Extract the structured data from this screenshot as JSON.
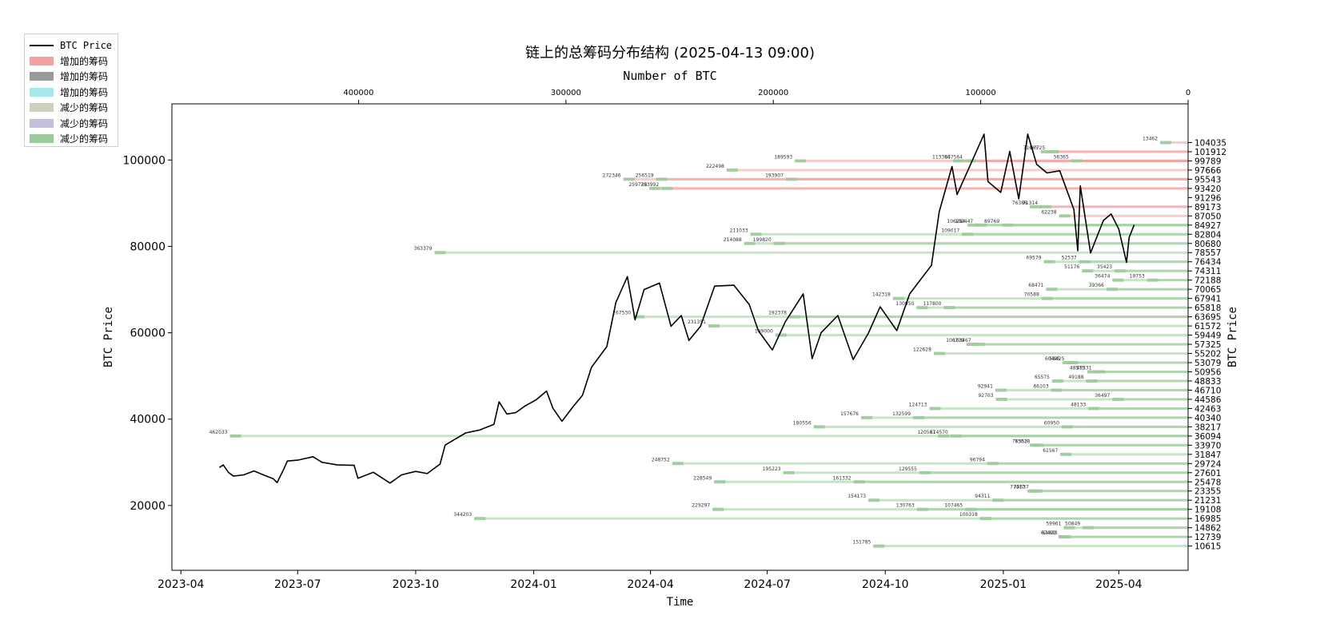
{
  "chart_data": {
    "type": "line",
    "title": "链上的总筹码分布结构 (2025-04-13 09:00)",
    "xlabel": "Time",
    "ylabel": "BTC Price",
    "ylabel_right": "BTC Price",
    "xlabel_top": "Number of BTC",
    "x_ticks": [
      "2023-04",
      "2023-07",
      "2023-10",
      "2024-01",
      "2024-04",
      "2024-07",
      "2024-10",
      "2025-01",
      "2025-04"
    ],
    "y_ticks": [
      20000,
      40000,
      60000,
      80000,
      100000
    ],
    "top_ticks": [
      400000,
      300000,
      200000,
      100000,
      0
    ],
    "xlim": [
      "2023-03-25",
      "2025-05-25"
    ],
    "ylim": [
      5000,
      113000
    ],
    "top_xlim": [
      490000,
      0
    ],
    "legend": [
      {
        "label": "BTC Price",
        "kind": "line",
        "color": "#000000"
      },
      {
        "label": "增加的筹码",
        "kind": "patch",
        "color": "#f4a1a1"
      },
      {
        "label": "增加的筹码",
        "kind": "patch",
        "color": "#999999"
      },
      {
        "label": "增加的筹码",
        "kind": "patch",
        "color": "#a6e7ec"
      },
      {
        "label": "减少的筹码",
        "kind": "patch",
        "color": "#cdd0bd"
      },
      {
        "label": "减少的筹码",
        "kind": "patch",
        "color": "#c3bedc"
      },
      {
        "label": "减少的筹码",
        "kind": "patch",
        "color": "#9ccb9b"
      }
    ],
    "series": [
      {
        "kind": "price",
        "points": [
          [
            "2023-05-01",
            28800
          ],
          [
            "2023-05-04",
            29400
          ],
          [
            "2023-05-08",
            27700
          ],
          [
            "2023-05-12",
            26800
          ],
          [
            "2023-05-20",
            27100
          ],
          [
            "2023-05-28",
            28000
          ],
          [
            "2023-06-05",
            27000
          ],
          [
            "2023-06-12",
            26200
          ],
          [
            "2023-06-15",
            25300
          ],
          [
            "2023-06-20",
            28300
          ],
          [
            "2023-06-23",
            30300
          ],
          [
            "2023-07-01",
            30500
          ],
          [
            "2023-07-13",
            31300
          ],
          [
            "2023-07-20",
            30000
          ],
          [
            "2023-08-01",
            29400
          ],
          [
            "2023-08-14",
            29300
          ],
          [
            "2023-08-17",
            26300
          ],
          [
            "2023-08-29",
            27700
          ],
          [
            "2023-09-11",
            25200
          ],
          [
            "2023-09-20",
            27100
          ],
          [
            "2023-10-01",
            27900
          ],
          [
            "2023-10-10",
            27400
          ],
          [
            "2023-10-20",
            29600
          ],
          [
            "2023-10-24",
            34000
          ],
          [
            "2023-11-01",
            35400
          ],
          [
            "2023-11-09",
            36800
          ],
          [
            "2023-11-20",
            37500
          ],
          [
            "2023-12-01",
            38800
          ],
          [
            "2023-12-05",
            44000
          ],
          [
            "2023-12-11",
            41200
          ],
          [
            "2023-12-18",
            41500
          ],
          [
            "2023-12-25",
            43000
          ],
          [
            "2024-01-03",
            44500
          ],
          [
            "2024-01-11",
            46500
          ],
          [
            "2024-01-16",
            42500
          ],
          [
            "2024-01-23",
            39500
          ],
          [
            "2024-02-01",
            43000
          ],
          [
            "2024-02-08",
            45500
          ],
          [
            "2024-02-15",
            52000
          ],
          [
            "2024-02-27",
            56800
          ],
          [
            "2024-03-05",
            67000
          ],
          [
            "2024-03-14",
            73000
          ],
          [
            "2024-03-20",
            63000
          ],
          [
            "2024-03-27",
            70000
          ],
          [
            "2024-04-08",
            71500
          ],
          [
            "2024-04-17",
            61500
          ],
          [
            "2024-04-25",
            64000
          ],
          [
            "2024-05-01",
            58200
          ],
          [
            "2024-05-10",
            61500
          ],
          [
            "2024-05-21",
            70800
          ],
          [
            "2024-06-05",
            71000
          ],
          [
            "2024-06-17",
            66500
          ],
          [
            "2024-06-24",
            60500
          ],
          [
            "2024-07-05",
            56000
          ],
          [
            "2024-07-15",
            62500
          ],
          [
            "2024-07-29",
            69000
          ],
          [
            "2024-08-05",
            54000
          ],
          [
            "2024-08-12",
            60000
          ],
          [
            "2024-08-25",
            64000
          ],
          [
            "2024-09-06",
            53800
          ],
          [
            "2024-09-18",
            60000
          ],
          [
            "2024-09-27",
            66000
          ],
          [
            "2024-10-10",
            60500
          ],
          [
            "2024-10-20",
            69000
          ],
          [
            "2024-10-29",
            72500
          ],
          [
            "2024-11-06",
            75600
          ],
          [
            "2024-11-12",
            88000
          ],
          [
            "2024-11-22",
            98500
          ],
          [
            "2024-11-26",
            92000
          ],
          [
            "2024-12-05",
            98000
          ],
          [
            "2024-12-17",
            106000
          ],
          [
            "2024-12-20",
            95000
          ],
          [
            "2024-12-30",
            92500
          ],
          [
            "2025-01-06",
            102000
          ],
          [
            "2025-01-13",
            91000
          ],
          [
            "2025-01-20",
            106000
          ],
          [
            "2025-01-27",
            99000
          ],
          [
            "2025-02-04",
            97000
          ],
          [
            "2025-02-14",
            97500
          ],
          [
            "2025-02-25",
            88500
          ],
          [
            "2025-02-28",
            79000
          ],
          [
            "2025-03-02",
            94000
          ],
          [
            "2025-03-10",
            78500
          ],
          [
            "2025-03-20",
            86000
          ],
          [
            "2025-03-26",
            87500
          ],
          [
            "2025-04-01",
            84000
          ],
          [
            "2025-04-07",
            76300
          ],
          [
            "2025-04-09",
            82000
          ],
          [
            "2025-04-13",
            85000
          ]
        ]
      }
    ],
    "price_levels": [
      104035,
      101912,
      99789,
      97666,
      95543,
      93420,
      91296,
      89173,
      87050,
      84927,
      82804,
      80680,
      78557,
      76434,
      74311,
      72188,
      70065,
      67941,
      65818,
      63695,
      61572,
      59449,
      57325,
      55202,
      53079,
      50956,
      48833,
      46710,
      44586,
      42463,
      40340,
      38217,
      36094,
      33970,
      31847,
      29724,
      27601,
      25478,
      23355,
      21231,
      19108,
      16985,
      14862,
      12739,
      10615
    ],
    "bars": [
      {
        "price": 104035,
        "btc": 13462
      },
      {
        "price": 101912,
        "btc": 67725
      },
      {
        "price": 101912,
        "btc": 71065
      },
      {
        "price": 99789,
        "btc": 56365
      },
      {
        "price": 99789,
        "btc": 113364
      },
      {
        "price": 99789,
        "btc": 189593
      },
      {
        "price": 99789,
        "btc": 107564
      },
      {
        "price": 97666,
        "btc": 222498
      },
      {
        "price": 95543,
        "btc": 256519
      },
      {
        "price": 95543,
        "btc": 272346
      },
      {
        "price": 95543,
        "btc": 193907
      },
      {
        "price": 93420,
        "btc": 259738
      },
      {
        "price": 93420,
        "btc": 253992
      },
      {
        "price": 89173,
        "btc": 76386
      },
      {
        "price": 89173,
        "btc": 71314
      },
      {
        "price": 87050,
        "btc": 62238
      },
      {
        "price": 84927,
        "btc": 106294
      },
      {
        "price": 84927,
        "btc": 102447
      },
      {
        "price": 84927,
        "btc": 89769
      },
      {
        "price": 82804,
        "btc": 109017
      },
      {
        "price": 82804,
        "btc": 211033
      },
      {
        "price": 80680,
        "btc": 199820
      },
      {
        "price": 80680,
        "btc": 214088
      },
      {
        "price": 78557,
        "btc": 363379
      },
      {
        "price": 76434,
        "btc": 69579
      },
      {
        "price": 76434,
        "btc": 52537
      },
      {
        "price": 74311,
        "btc": 35423
      },
      {
        "price": 74311,
        "btc": 51176
      },
      {
        "price": 72188,
        "btc": 36474
      },
      {
        "price": 72188,
        "btc": 19753
      },
      {
        "price": 70065,
        "btc": 39366
      },
      {
        "price": 70065,
        "btc": 68471
      },
      {
        "price": 67941,
        "btc": 142318
      },
      {
        "price": 67941,
        "btc": 70588
      },
      {
        "price": 65818,
        "btc": 130950
      },
      {
        "price": 65818,
        "btc": 117800
      },
      {
        "price": 63695,
        "btc": 192378
      },
      {
        "price": 63695,
        "btc": 267530
      },
      {
        "price": 61572,
        "btc": 231351
      },
      {
        "price": 59449,
        "btc": 199000
      },
      {
        "price": 57325,
        "btc": 106770
      },
      {
        "price": 57325,
        "btc": 103467
      },
      {
        "price": 55202,
        "btc": 122628
      },
      {
        "price": 53079,
        "btc": 58425
      },
      {
        "price": 53079,
        "btc": 60495
      },
      {
        "price": 50956,
        "btc": 45331
      },
      {
        "price": 50956,
        "btc": 48575
      },
      {
        "price": 48833,
        "btc": 65575
      },
      {
        "price": 48833,
        "btc": 49188
      },
      {
        "price": 46710,
        "btc": 66103
      },
      {
        "price": 46710,
        "btc": 92941
      },
      {
        "price": 44586,
        "btc": 92703
      },
      {
        "price": 44586,
        "btc": 36497
      },
      {
        "price": 42463,
        "btc": 48133
      },
      {
        "price": 42463,
        "btc": 124713
      },
      {
        "price": 40340,
        "btc": 132599
      },
      {
        "price": 40340,
        "btc": 157676
      },
      {
        "price": 38217,
        "btc": 180556
      },
      {
        "price": 38217,
        "btc": 60950
      },
      {
        "price": 36094,
        "btc": 114570
      },
      {
        "price": 36094,
        "btc": 120567
      },
      {
        "price": 36094,
        "btc": 462033
      },
      {
        "price": 33970,
        "btc": 75028
      },
      {
        "price": 33970,
        "btc": 76353
      },
      {
        "price": 31847,
        "btc": 61567
      },
      {
        "price": 29724,
        "btc": 248752
      },
      {
        "price": 29724,
        "btc": 96794
      },
      {
        "price": 27601,
        "btc": 195223
      },
      {
        "price": 27601,
        "btc": 129555
      },
      {
        "price": 25478,
        "btc": 161332
      },
      {
        "price": 25478,
        "btc": 228549
      },
      {
        "price": 23355,
        "btc": 77413
      },
      {
        "price": 23355,
        "btc": 75637
      },
      {
        "price": 21231,
        "btc": 154173
      },
      {
        "price": 21231,
        "btc": 94311
      },
      {
        "price": 19108,
        "btc": 130763
      },
      {
        "price": 19108,
        "btc": 107465
      },
      {
        "price": 19108,
        "btc": 229297
      },
      {
        "price": 16985,
        "btc": 100318
      },
      {
        "price": 16985,
        "btc": 344203
      },
      {
        "price": 14862,
        "btc": 59961
      },
      {
        "price": 14862,
        "btc": 50849
      },
      {
        "price": 12739,
        "btc": 61833
      },
      {
        "price": 12739,
        "btc": 62493
      },
      {
        "price": 10615,
        "btc": 151785
      }
    ]
  }
}
